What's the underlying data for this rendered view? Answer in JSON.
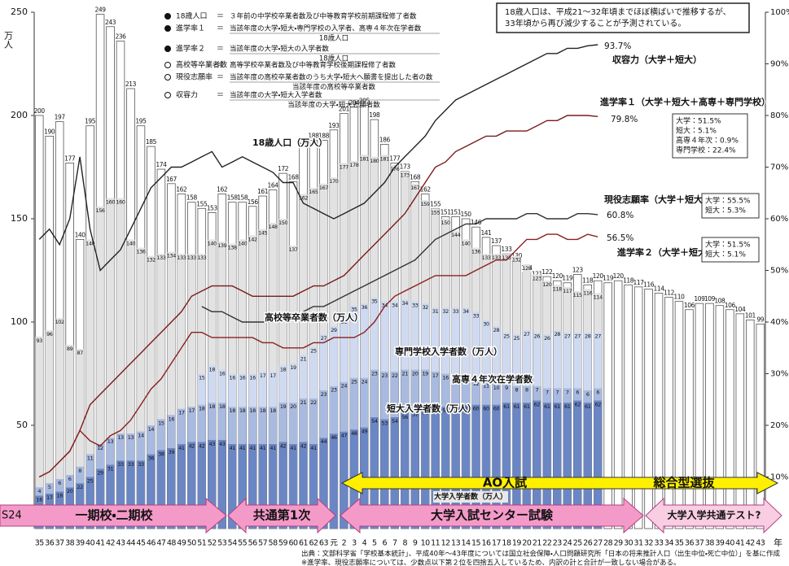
{
  "chart_data": {
    "type": "bar",
    "unit_left": "万人",
    "unit_x": "年",
    "era_start": "S24",
    "categories": [
      "35",
      "36",
      "37",
      "38",
      "39",
      "40",
      "41",
      "42",
      "43",
      "44",
      "45",
      "46",
      "47",
      "48",
      "49",
      "50",
      "51",
      "52",
      "53",
      "54",
      "55",
      "56",
      "57",
      "58",
      "59",
      "60",
      "61",
      "62",
      "63",
      "元",
      "2",
      "3",
      "4",
      "5",
      "6",
      "7",
      "8",
      "9",
      "10",
      "11",
      "12",
      "13",
      "14",
      "15",
      "16",
      "17",
      "18",
      "19",
      "20",
      "21",
      "22",
      "23",
      "24",
      "25",
      "26",
      "27",
      "28",
      "29",
      "30",
      "31",
      "32",
      "33",
      "34",
      "35",
      "36",
      "37",
      "38",
      "39",
      "40",
      "41",
      "42",
      "43"
    ],
    "ylim": [
      0,
      250
    ],
    "yticks": [
      50,
      100,
      150,
      200,
      250
    ],
    "y2lim": [
      0,
      100
    ],
    "y2ticks": [
      {
        "value": 10,
        "label": "10%"
      },
      {
        "value": 20,
        "label": "20%"
      },
      {
        "value": 30,
        "label": "30%"
      },
      {
        "value": 40,
        "label": "40%"
      },
      {
        "value": 50,
        "label": "50%"
      },
      {
        "value": 60,
        "label": "60%"
      },
      {
        "value": 70,
        "label": "70%"
      },
      {
        "value": 80,
        "label": "80%"
      },
      {
        "value": 90,
        "label": "90%"
      },
      {
        "value": 100,
        "label": "100%"
      }
    ],
    "series": [
      {
        "name": "18歳人口（万人）",
        "type": "bar",
        "color": "#ffffff",
        "values": [
          200,
          190,
          197,
          177,
          140,
          195,
          249,
          243,
          236,
          213,
          195,
          185,
          174,
          167,
          162,
          158,
          155,
          153,
          162,
          158,
          158,
          156,
          161,
          164,
          172,
          168,
          185,
          188,
          188,
          193,
          201,
          204,
          205,
          198,
          186,
          177,
          173,
          168,
          162,
          155,
          151,
          151,
          150,
          146,
          141,
          137,
          133,
          130,
          124,
          121,
          122,
          120,
          119,
          123,
          118,
          120,
          119,
          120,
          118,
          117,
          116,
          114,
          112,
          110,
          106,
          109,
          109,
          108,
          106,
          104,
          101,
          99
        ]
      },
      {
        "name": "高校等卒業者数（万人）",
        "type": "bar",
        "color": "#e2e2e2",
        "values": [
          93,
          96,
          102,
          89,
          87,
          140,
          156,
          160,
          160,
          140,
          136,
          132,
          133,
          134,
          133,
          133,
          133,
          140,
          139,
          138,
          140,
          142,
          145,
          148,
          150,
          137,
          162,
          165,
          167,
          170,
          177,
          178,
          181,
          180,
          181,
          176,
          173,
          167,
          159,
          155,
          150,
          144,
          140,
          136,
          133,
          133,
          133,
          132,
          128,
          123,
          120,
          118,
          117,
          115,
          116,
          114,
          null,
          null,
          null,
          null,
          null,
          null,
          null,
          null,
          null,
          null,
          null,
          null,
          null,
          null,
          null,
          null
        ]
      },
      {
        "name": "大学入学者数（万人）",
        "type": "bar",
        "stack": true,
        "color": "#6b86c4",
        "values": [
          16,
          17,
          18,
          20,
          22,
          25,
          29,
          31,
          33,
          33,
          33,
          36,
          38,
          39,
          41,
          42,
          42,
          43,
          43,
          41,
          41,
          41,
          41,
          41,
          42,
          41,
          42,
          41,
          44,
          46,
          47,
          48,
          49,
          54,
          53,
          54,
          56,
          57,
          58,
          59,
          59,
          60,
          60,
          60,
          60,
          60,
          61,
          61,
          61,
          62,
          61,
          61,
          61,
          62,
          61,
          62,
          null,
          null,
          null,
          null,
          null,
          null,
          null,
          null,
          null,
          null,
          null,
          null,
          null,
          null,
          null,
          null
        ]
      },
      {
        "name": "短大入学者数（万人）",
        "type": "bar",
        "stack": true,
        "color": "#a9bae0",
        "values": [
          4,
          5,
          6,
          6,
          8,
          11,
          12,
          13,
          13,
          13,
          14,
          14,
          15,
          16,
          17,
          17,
          18,
          18,
          18,
          18,
          18,
          18,
          18,
          18,
          19,
          20,
          21,
          22,
          23,
          23,
          24,
          25,
          24,
          23,
          23,
          22,
          21,
          20,
          19,
          17,
          16,
          14,
          13,
          12,
          11,
          10,
          9,
          8,
          8,
          7,
          7,
          7,
          7,
          6,
          6,
          6,
          null,
          null,
          null,
          null,
          null,
          null,
          null,
          null,
          null,
          null,
          null,
          null,
          null,
          null,
          null,
          null
        ]
      },
      {
        "name": "専門学校入学者数（万人）",
        "type": "bar",
        "stack": true,
        "color": "#cfdaf1",
        "values": [
          null,
          null,
          null,
          null,
          null,
          null,
          null,
          null,
          null,
          null,
          null,
          null,
          null,
          null,
          null,
          null,
          15,
          18,
          16,
          16,
          16,
          16,
          17,
          17,
          18,
          19,
          21,
          25,
          27,
          29,
          31,
          35,
          36,
          35,
          34,
          34,
          34,
          33,
          32,
          31,
          32,
          33,
          34,
          33,
          30,
          28,
          25,
          25,
          27,
          26,
          26,
          28,
          27,
          27,
          28,
          27,
          null,
          null,
          null,
          null,
          null,
          null,
          null,
          null,
          null,
          null,
          null,
          null,
          null,
          null,
          null,
          null
        ]
      },
      {
        "name": "収容力（大学＋短大）",
        "type": "line",
        "axis": "y2",
        "color": "#222222",
        "values": [
          56,
          58,
          55,
          60,
          72,
          58,
          50,
          52,
          54,
          58,
          62,
          66,
          68,
          70,
          70,
          71,
          72,
          73,
          70,
          71,
          72,
          71,
          70,
          69,
          67,
          67,
          63,
          62,
          61,
          60,
          61,
          62,
          63,
          65,
          67,
          70,
          72,
          74,
          76,
          79,
          81,
          83,
          84,
          85,
          86,
          87,
          88,
          89,
          90,
          91,
          92,
          92,
          93,
          93,
          93.5,
          93.7,
          null,
          null,
          null,
          null,
          null,
          null,
          null,
          null,
          null,
          null,
          null,
          null,
          null,
          null,
          null,
          null
        ]
      },
      {
        "name": "進学率１（大学＋短大＋高専＋専門学校）",
        "type": "line",
        "axis": "y2",
        "color": "#7a1a1a",
        "values": [
          10,
          11,
          13,
          15,
          19,
          24,
          26,
          28,
          30,
          32,
          34,
          36,
          38,
          40,
          42,
          45,
          46,
          47,
          47,
          47,
          46,
          45,
          45,
          45,
          45,
          45,
          46,
          47,
          47,
          48,
          49,
          51,
          53,
          55,
          57,
          59,
          61,
          64,
          67,
          70,
          71,
          73,
          74,
          75,
          76,
          76,
          77,
          77,
          77,
          78,
          79,
          79,
          80,
          80,
          80,
          79.8,
          null,
          null,
          null,
          null,
          null,
          null,
          null,
          null,
          null,
          null,
          null,
          null,
          null,
          null,
          null,
          null
        ]
      },
      {
        "name": "現役志願率（大学＋短大）",
        "type": "line",
        "axis": "y2",
        "color": "#333333",
        "values": [
          null,
          null,
          null,
          null,
          null,
          null,
          null,
          null,
          null,
          null,
          null,
          null,
          null,
          null,
          null,
          null,
          43,
          42,
          42,
          41,
          40,
          40,
          40,
          40,
          41,
          41,
          42,
          43,
          43,
          44,
          45,
          46,
          47,
          48,
          49,
          50,
          51,
          52,
          54,
          56,
          57,
          58,
          59,
          59,
          60,
          60,
          60,
          60,
          61,
          61,
          60,
          60,
          60,
          61,
          61,
          60.8,
          null,
          null,
          null,
          null,
          null,
          null,
          null,
          null,
          null,
          null,
          null,
          null,
          null,
          null,
          null,
          null
        ]
      },
      {
        "name": "進学率２（大学＋短大）",
        "type": "line",
        "axis": "y2",
        "color": "#8a2020",
        "values": [
          10,
          11,
          13,
          15,
          19,
          17,
          16,
          18,
          19,
          21,
          24,
          27,
          29,
          32,
          35,
          38,
          38,
          37,
          37,
          37,
          37,
          37,
          36,
          36,
          35,
          35,
          35,
          36,
          36,
          37,
          37,
          37,
          38,
          40,
          43,
          45,
          46,
          47,
          48,
          49,
          49,
          49,
          49,
          50,
          51,
          52,
          52,
          54,
          56,
          56,
          57,
          57,
          56,
          56,
          57,
          56.5,
          null,
          null,
          null,
          null,
          null,
          null,
          null,
          null,
          null,
          null,
          null,
          null,
          null,
          null,
          null,
          null
        ]
      }
    ],
    "end_labels": [
      "93.7%",
      "79.8%",
      "60.8%",
      "56.5%"
    ],
    "extra_label": "高専４年次在学者数",
    "note": [
      "18歳人口は、平成21～32年頃までほぼ横ばいで推移するが、",
      "33年頃から再び減少することが予測されている。"
    ],
    "definitions": [
      {
        "term": "18歳人口",
        "eq": "＝",
        "text": "３年前の中学校卒業者数及び中等教育学校前期課程修了者数"
      },
      {
        "term": "進学率１",
        "eq": "＝",
        "text": "当該年度の大学・短大・専門学校の入学者、高専４年次在学者数",
        "denominator": "18歳人口"
      },
      {
        "term": "進学率２",
        "eq": "＝",
        "text": "当該年度の大学・短大の入学者数",
        "denominator": "18歳人口"
      },
      {
        "term": "高校等卒業者数",
        "eq": "＝",
        "text": "高等学校卒業者数及び中等教育学校後期課程修了者数"
      },
      {
        "term": "現役志願率",
        "eq": "＝",
        "text": "当該年度の高校卒業者数のうち大学・短大へ願書を提出した者の数",
        "denominator": "当該年度の高校等卒業者数"
      },
      {
        "term": "収容力",
        "eq": "＝",
        "text": "当該年度の大学・短大入学者数",
        "denominator": "当該年度の大学・短大志願者数"
      }
    ],
    "breakdowns": [
      [
        "大学：51.5%",
        "短大：5.1%",
        "高専４年次：0.9%",
        "専門学校：22.4%"
      ],
      [
        "大学：55.5%",
        "短大：5.3%"
      ],
      [
        "大学：51.5%",
        "短大：5.1%"
      ]
    ],
    "selection_methods": [
      "AO入試",
      "総合型選抜"
    ],
    "exam_periods": [
      "一期校・二期校",
      "共通第1次",
      "大学入試センター試験",
      "大学入学共通テスト?"
    ],
    "footnotes": [
      "出典：文部科学省「学校基本統計」、平成40年～43年度については国立社会保障・人口問題研究所「日本の将来推計人口（出生中位・死亡中位）」を基に作成",
      "※進学率、現役志願率については、少数点以下第２位を四捨五入しているため、内訳の計と合計が一致しない場合がある。"
    ]
  }
}
